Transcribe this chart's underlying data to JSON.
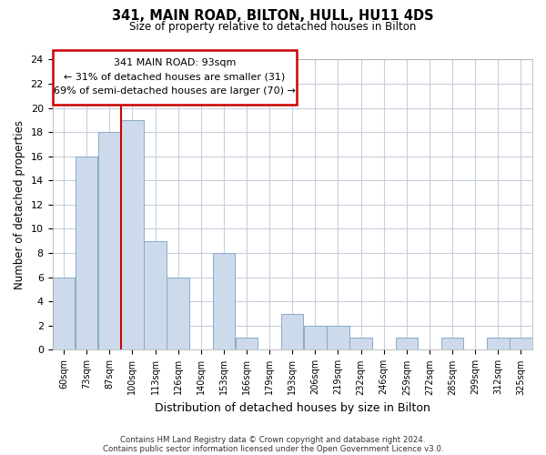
{
  "title": "341, MAIN ROAD, BILTON, HULL, HU11 4DS",
  "subtitle": "Size of property relative to detached houses in Bilton",
  "xlabel": "Distribution of detached houses by size in Bilton",
  "ylabel": "Number of detached properties",
  "bar_color": "#ccdaeb",
  "bar_edge_color": "#8aaac8",
  "vline_color": "#cc0000",
  "annotation_line1": "341 MAIN ROAD: 93sqm",
  "annotation_line2": "← 31% of detached houses are smaller (31)",
  "annotation_line3": "69% of semi-detached houses are larger (70) →",
  "bins": [
    "60sqm",
    "73sqm",
    "87sqm",
    "100sqm",
    "113sqm",
    "126sqm",
    "140sqm",
    "153sqm",
    "166sqm",
    "179sqm",
    "193sqm",
    "206sqm",
    "219sqm",
    "232sqm",
    "246sqm",
    "259sqm",
    "272sqm",
    "285sqm",
    "299sqm",
    "312sqm",
    "325sqm"
  ],
  "values": [
    6,
    16,
    18,
    19,
    9,
    6,
    0,
    8,
    1,
    0,
    3,
    2,
    2,
    1,
    0,
    1,
    0,
    1,
    0,
    1,
    1
  ],
  "ylim": [
    0,
    24
  ],
  "yticks": [
    0,
    2,
    4,
    6,
    8,
    10,
    12,
    14,
    16,
    18,
    20,
    22,
    24
  ],
  "footnote1": "Contains HM Land Registry data © Crown copyright and database right 2024.",
  "footnote2": "Contains public sector information licensed under the Open Government Licence v3.0.",
  "background_color": "#ffffff",
  "grid_color": "#c8d0dc"
}
